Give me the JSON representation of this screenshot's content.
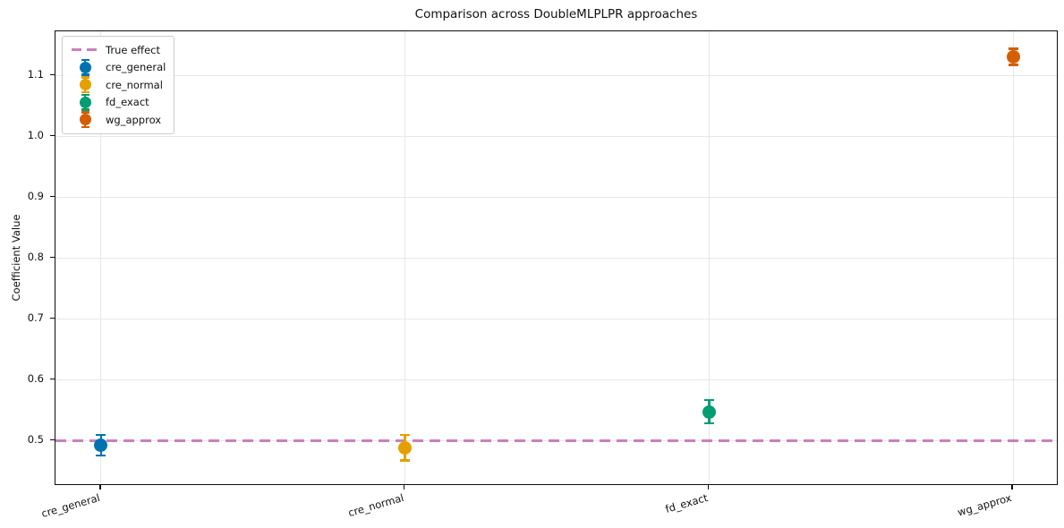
{
  "figure": {
    "title": "Comparison across DoubleMLPLPR approaches",
    "ylabel": "Coefficient Value"
  },
  "chart_data": {
    "type": "scatter",
    "subtype": "errorbar-point-estimates",
    "title": "Comparison across DoubleMLPLPR approaches",
    "xlabel": "",
    "ylabel": "Coefficient Value",
    "categories": [
      "cre_general",
      "cre_normal",
      "fd_exact",
      "wg_approx"
    ],
    "series": [
      {
        "name": "cre_general",
        "value": 0.493,
        "error": 0.017,
        "color": "#0072B2"
      },
      {
        "name": "cre_normal",
        "value": 0.489,
        "error": 0.021,
        "color": "#E69F00"
      },
      {
        "name": "fd_exact",
        "value": 0.548,
        "error": 0.019,
        "color": "#009E73"
      },
      {
        "name": "wg_approx",
        "value": 1.131,
        "error": 0.013,
        "color": "#D55E00"
      }
    ],
    "true_effect": {
      "label": "True effect",
      "value": 0.5,
      "color": "#C97FC0",
      "line_style": "dashed"
    },
    "y_ticks": [
      0.5,
      0.6,
      0.7,
      0.8,
      0.9,
      1.0,
      1.1
    ],
    "ylim": [
      0.426,
      1.173
    ],
    "xlim": [
      -0.15,
      3.15
    ],
    "grid": true,
    "x_tick_rotation_deg": 16,
    "legend_position": "upper-left",
    "legend": [
      "True effect",
      "cre_general",
      "cre_normal",
      "fd_exact",
      "wg_approx"
    ]
  }
}
